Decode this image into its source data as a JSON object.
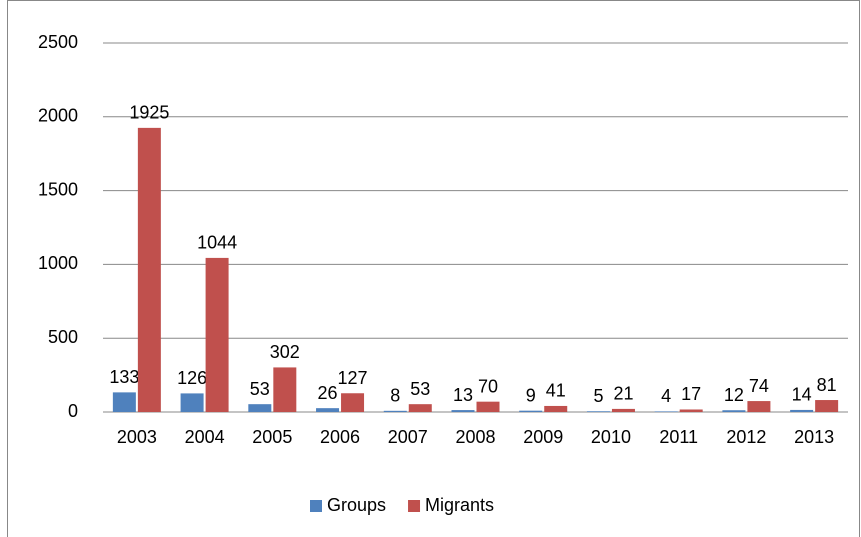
{
  "chart_data": {
    "type": "bar",
    "categories": [
      "2003",
      "2004",
      "2005",
      "2006",
      "2007",
      "2008",
      "2009",
      "2010",
      "2011",
      "2012",
      "2013"
    ],
    "series": [
      {
        "name": "Groups",
        "color": "#4f81bd",
        "values": [
          133,
          126,
          53,
          26,
          8,
          13,
          9,
          5,
          4,
          12,
          14
        ]
      },
      {
        "name": "Migrants",
        "color": "#c0504d",
        "values": [
          1925,
          1044,
          302,
          127,
          53,
          70,
          41,
          21,
          17,
          74,
          81
        ]
      }
    ],
    "ylim": [
      0,
      2500
    ],
    "yticks": [
      0,
      500,
      1000,
      1500,
      2000,
      2500
    ],
    "grid": true,
    "legend": "bottom"
  }
}
